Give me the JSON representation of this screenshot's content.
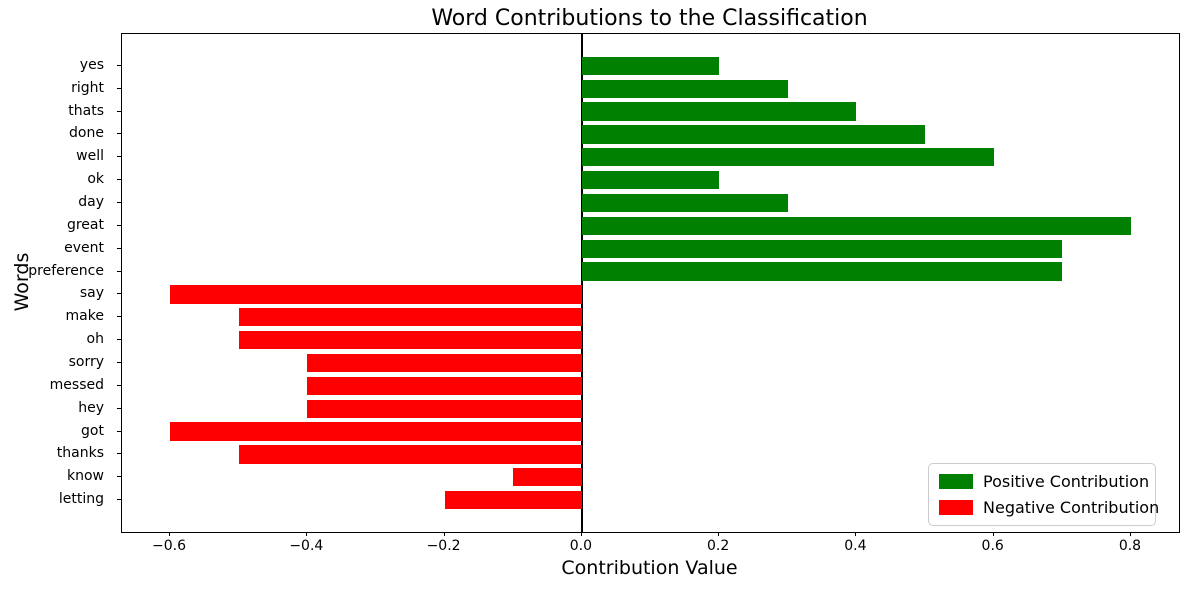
{
  "title": "Word Contributions to the Classification",
  "colors": {
    "positive": "#008000",
    "negative": "#ff0000",
    "spine": "#000000",
    "legend_border": "#cccccc"
  },
  "legend": {
    "positive_label": "Positive Contribution",
    "negative_label": "Negative Contribution",
    "position": "lower right"
  },
  "chart_data": {
    "type": "bar",
    "orientation": "horizontal",
    "title": "Word Contributions to the Classification",
    "xlabel": "Contribution Value",
    "ylabel": "Words",
    "categories": [
      "yes",
      "right",
      "thats",
      "done",
      "well",
      "ok",
      "day",
      "great",
      "event",
      "preference",
      "say",
      "make",
      "oh",
      "sorry",
      "messed",
      "hey",
      "got",
      "thanks",
      "know",
      "letting"
    ],
    "values": [
      0.2,
      0.3,
      0.4,
      0.5,
      0.6,
      0.2,
      0.3,
      0.8,
      0.7,
      0.7,
      -0.6,
      -0.5,
      -0.5,
      -0.4,
      -0.4,
      -0.4,
      -0.6,
      -0.5,
      -0.1,
      -0.2
    ],
    "xlim": [
      -0.67,
      0.87
    ],
    "x_ticks": [
      {
        "label": "−0.6",
        "value": -0.6
      },
      {
        "label": "−0.4",
        "value": -0.4
      },
      {
        "label": "−0.2",
        "value": -0.2
      },
      {
        "label": "0.0",
        "value": 0.0
      },
      {
        "label": "0.2",
        "value": 0.2
      },
      {
        "label": "0.4",
        "value": 0.4
      },
      {
        "label": "0.6",
        "value": 0.6
      },
      {
        "label": "0.8",
        "value": 0.8
      }
    ],
    "grid": false,
    "zero_line": true
  }
}
